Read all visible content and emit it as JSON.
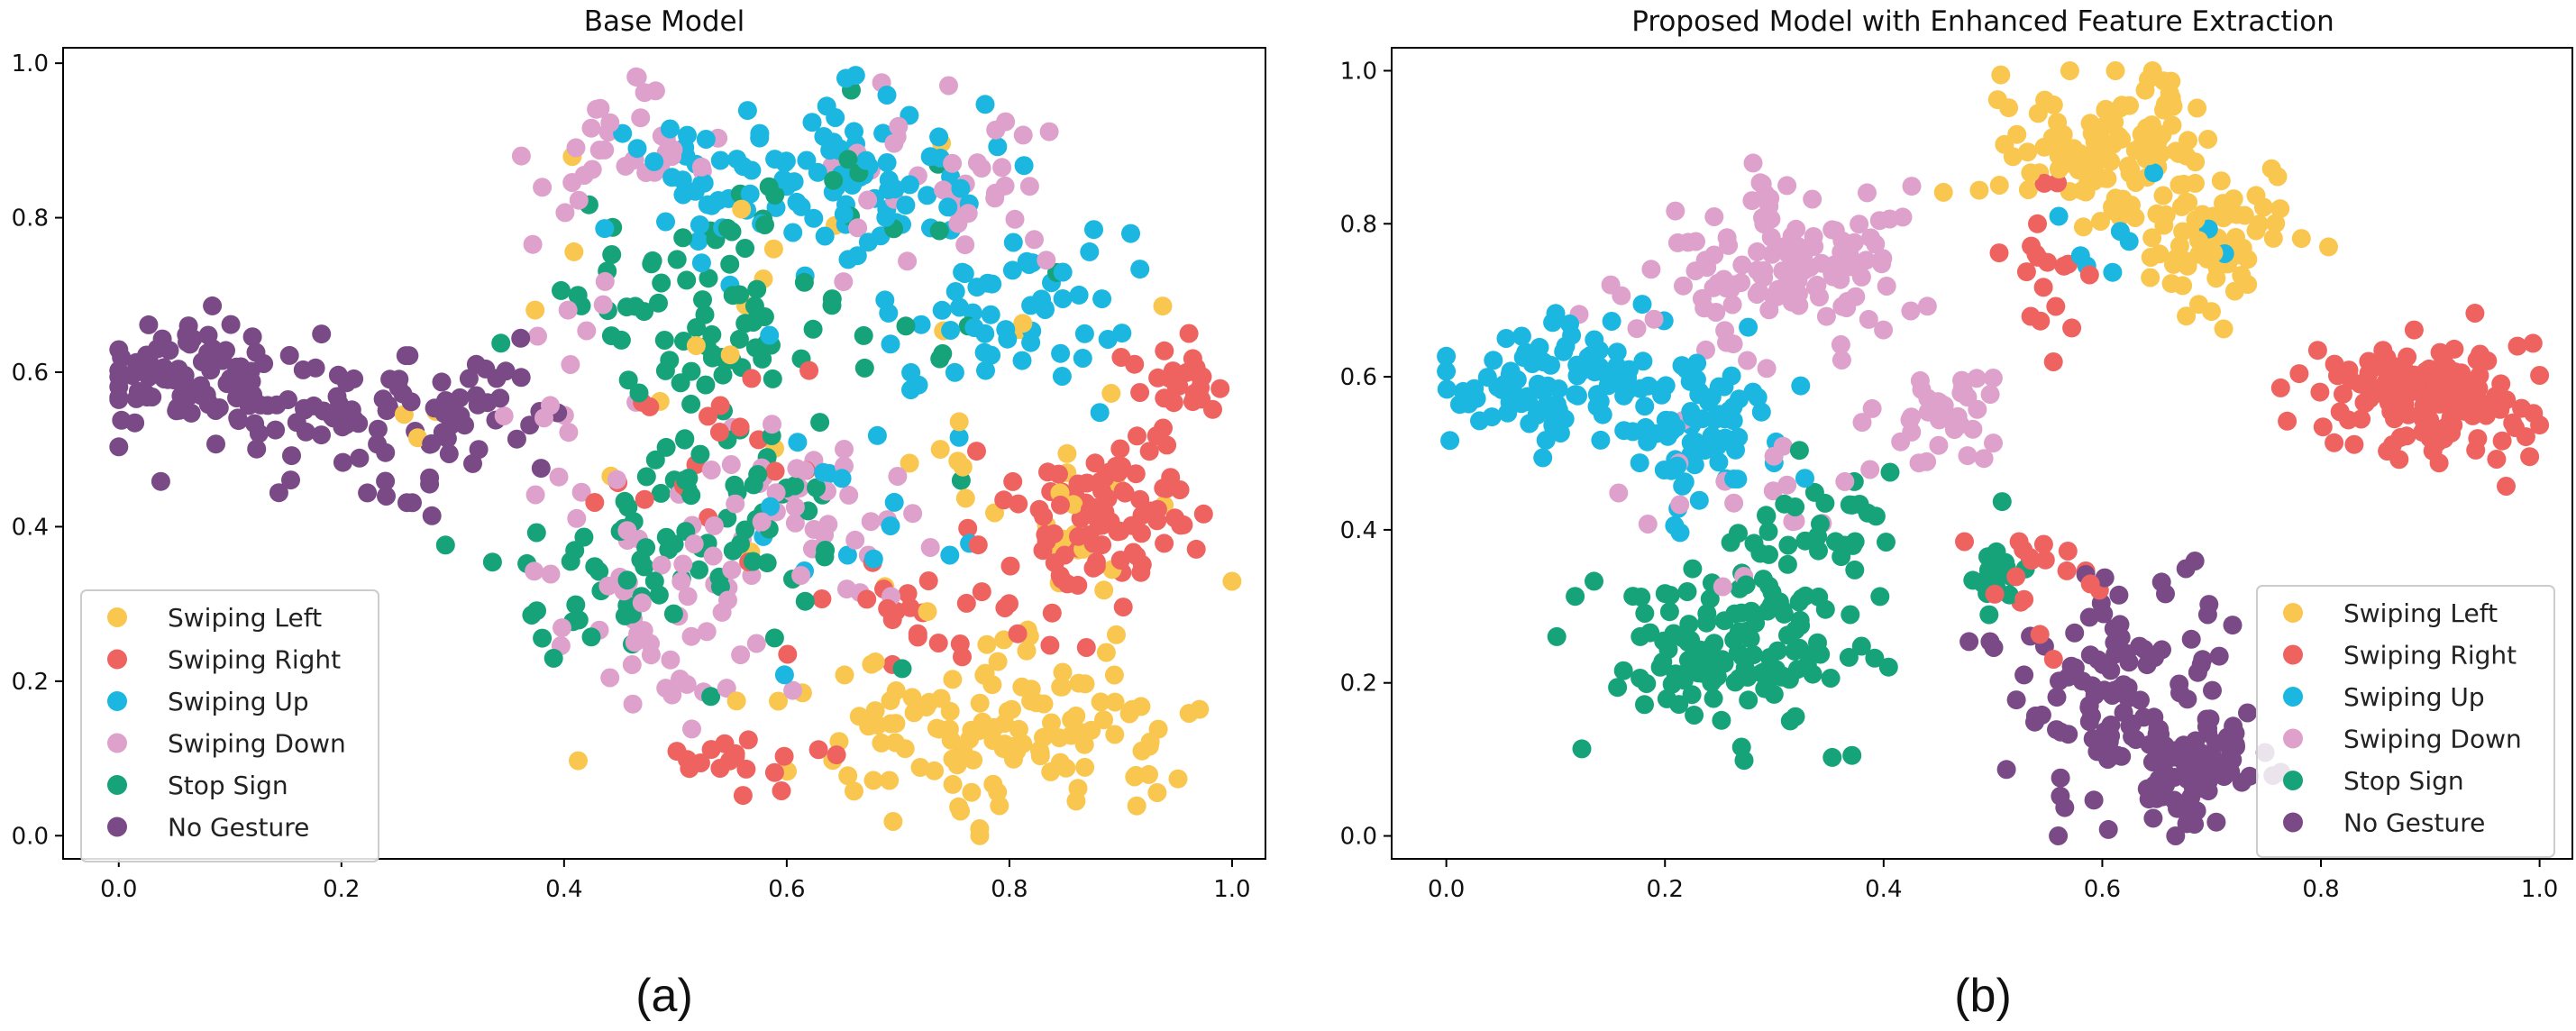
{
  "legend_items": [
    "Swiping Left",
    "Swiping Right",
    "Swiping Up",
    "Swiping Down",
    "Stop Sign",
    "No Gesture"
  ],
  "colors": {
    "Swiping Left": "#F9C74F",
    "Swiping Right": "#EE6360",
    "Swiping Up": "#1BB7E0",
    "Swiping Down": "#DDA1CC",
    "Stop Sign": "#17A37A",
    "No Gesture": "#7A4A86"
  },
  "chart_data": [
    {
      "type": "scatter",
      "title": "Base Model",
      "caption": "(a)",
      "xlabel": "",
      "ylabel": "",
      "xlim": [
        -0.05,
        1.03
      ],
      "ylim": [
        -0.03,
        1.02
      ],
      "xticks": [
        "0.0",
        "0.2",
        "0.4",
        "0.6",
        "0.8",
        "1.0"
      ],
      "yticks": [
        "0.0",
        "0.2",
        "0.4",
        "0.6",
        "0.8",
        "1.0"
      ],
      "legend_position": "lower-left",
      "points_per_class": 180,
      "series": [
        {
          "name": "No Gesture",
          "clusters": [
            {
              "cx": 0.06,
              "cy": 0.6,
              "sx": 0.05,
              "sy": 0.035,
              "w": 0.45
            },
            {
              "cx": 0.22,
              "cy": 0.54,
              "sx": 0.07,
              "sy": 0.04,
              "w": 0.45
            },
            {
              "cx": 0.33,
              "cy": 0.55,
              "sx": 0.03,
              "sy": 0.04,
              "w": 0.1
            }
          ]
        },
        {
          "name": "Swiping Down",
          "clusters": [
            {
              "cx": 0.45,
              "cy": 0.88,
              "sx": 0.04,
              "sy": 0.04,
              "w": 0.2
            },
            {
              "cx": 0.74,
              "cy": 0.84,
              "sx": 0.07,
              "sy": 0.06,
              "w": 0.2
            },
            {
              "cx": 0.62,
              "cy": 0.4,
              "sx": 0.05,
              "sy": 0.06,
              "w": 0.25
            },
            {
              "cx": 0.5,
              "cy": 0.3,
              "sx": 0.07,
              "sy": 0.08,
              "w": 0.25
            },
            {
              "cx": 0.4,
              "cy": 0.55,
              "sx": 0.03,
              "sy": 0.08,
              "w": 0.1
            }
          ]
        },
        {
          "name": "Swiping Up",
          "clusters": [
            {
              "cx": 0.66,
              "cy": 0.85,
              "sx": 0.06,
              "sy": 0.06,
              "w": 0.45
            },
            {
              "cx": 0.8,
              "cy": 0.68,
              "sx": 0.05,
              "sy": 0.06,
              "w": 0.3
            },
            {
              "cx": 0.52,
              "cy": 0.85,
              "sx": 0.05,
              "sy": 0.05,
              "w": 0.15
            },
            {
              "cx": 0.65,
              "cy": 0.45,
              "sx": 0.06,
              "sy": 0.1,
              "w": 0.1
            }
          ]
        },
        {
          "name": "Stop Sign",
          "clusters": [
            {
              "cx": 0.52,
              "cy": 0.68,
              "sx": 0.07,
              "sy": 0.08,
              "w": 0.35
            },
            {
              "cx": 0.53,
              "cy": 0.42,
              "sx": 0.06,
              "sy": 0.08,
              "w": 0.35
            },
            {
              "cx": 0.44,
              "cy": 0.33,
              "sx": 0.05,
              "sy": 0.05,
              "w": 0.15
            },
            {
              "cx": 0.68,
              "cy": 0.72,
              "sx": 0.09,
              "sy": 0.15,
              "w": 0.15
            }
          ]
        },
        {
          "name": "Swiping Right",
          "clusters": [
            {
              "cx": 0.89,
              "cy": 0.42,
              "sx": 0.04,
              "sy": 0.05,
              "w": 0.5
            },
            {
              "cx": 0.95,
              "cy": 0.57,
              "sx": 0.02,
              "sy": 0.03,
              "w": 0.15
            },
            {
              "cx": 0.74,
              "cy": 0.3,
              "sx": 0.06,
              "sy": 0.04,
              "w": 0.15
            },
            {
              "cx": 0.57,
              "cy": 0.1,
              "sx": 0.03,
              "sy": 0.02,
              "w": 0.1
            },
            {
              "cx": 0.53,
              "cy": 0.5,
              "sx": 0.06,
              "sy": 0.08,
              "w": 0.1
            }
          ]
        },
        {
          "name": "Swiping Left",
          "clusters": [
            {
              "cx": 0.8,
              "cy": 0.13,
              "sx": 0.09,
              "sy": 0.05,
              "w": 0.7
            },
            {
              "cx": 0.85,
              "cy": 0.4,
              "sx": 0.09,
              "sy": 0.12,
              "w": 0.15
            },
            {
              "cx": 0.58,
              "cy": 0.55,
              "sx": 0.15,
              "sy": 0.2,
              "w": 0.15
            }
          ]
        }
      ]
    },
    {
      "type": "scatter",
      "title": "Proposed Model with Enhanced Feature Extraction",
      "caption": "(b)",
      "xlabel": "",
      "ylabel": "",
      "xlim": [
        -0.05,
        1.03
      ],
      "ylim": [
        -0.03,
        1.03
      ],
      "xticks": [
        "0.0",
        "0.2",
        "0.4",
        "0.6",
        "0.8",
        "1.0"
      ],
      "yticks": [
        "0.0",
        "0.2",
        "0.4",
        "0.6",
        "0.8",
        "1.0"
      ],
      "legend_position": "lower-right",
      "points_per_class": 180,
      "series": [
        {
          "name": "Swiping Up",
          "clusters": [
            {
              "cx": 0.09,
              "cy": 0.6,
              "sx": 0.05,
              "sy": 0.04,
              "w": 0.55
            },
            {
              "cx": 0.23,
              "cy": 0.53,
              "sx": 0.04,
              "sy": 0.05,
              "w": 0.4
            },
            {
              "cx": 0.6,
              "cy": 0.8,
              "sx": 0.05,
              "sy": 0.05,
              "w": 0.05
            }
          ]
        },
        {
          "name": "Swiping Down",
          "clusters": [
            {
              "cx": 0.3,
              "cy": 0.74,
              "sx": 0.06,
              "sy": 0.05,
              "w": 0.7
            },
            {
              "cx": 0.46,
              "cy": 0.55,
              "sx": 0.03,
              "sy": 0.03,
              "w": 0.2
            },
            {
              "cx": 0.27,
              "cy": 0.42,
              "sx": 0.06,
              "sy": 0.05,
              "w": 0.1
            }
          ]
        },
        {
          "name": "Swiping Left",
          "clusters": [
            {
              "cx": 0.61,
              "cy": 0.9,
              "sx": 0.05,
              "sy": 0.05,
              "w": 0.65
            },
            {
              "cx": 0.7,
              "cy": 0.77,
              "sx": 0.04,
              "sy": 0.04,
              "w": 0.35
            }
          ]
        },
        {
          "name": "Swiping Right",
          "clusters": [
            {
              "cx": 0.9,
              "cy": 0.57,
              "sx": 0.05,
              "sy": 0.04,
              "w": 0.8
            },
            {
              "cx": 0.55,
              "cy": 0.75,
              "sx": 0.03,
              "sy": 0.06,
              "w": 0.1
            },
            {
              "cx": 0.55,
              "cy": 0.33,
              "sx": 0.04,
              "sy": 0.05,
              "w": 0.1
            }
          ]
        },
        {
          "name": "Stop Sign",
          "clusters": [
            {
              "cx": 0.27,
              "cy": 0.24,
              "sx": 0.06,
              "sy": 0.06,
              "w": 0.7
            },
            {
              "cx": 0.35,
              "cy": 0.4,
              "sx": 0.04,
              "sy": 0.05,
              "w": 0.2
            },
            {
              "cx": 0.5,
              "cy": 0.35,
              "sx": 0.02,
              "sy": 0.04,
              "w": 0.1
            }
          ]
        },
        {
          "name": "No Gesture",
          "clusters": [
            {
              "cx": 0.62,
              "cy": 0.18,
              "sx": 0.05,
              "sy": 0.07,
              "w": 0.6
            },
            {
              "cx": 0.68,
              "cy": 0.07,
              "sx": 0.03,
              "sy": 0.04,
              "w": 0.4
            }
          ]
        }
      ]
    }
  ]
}
